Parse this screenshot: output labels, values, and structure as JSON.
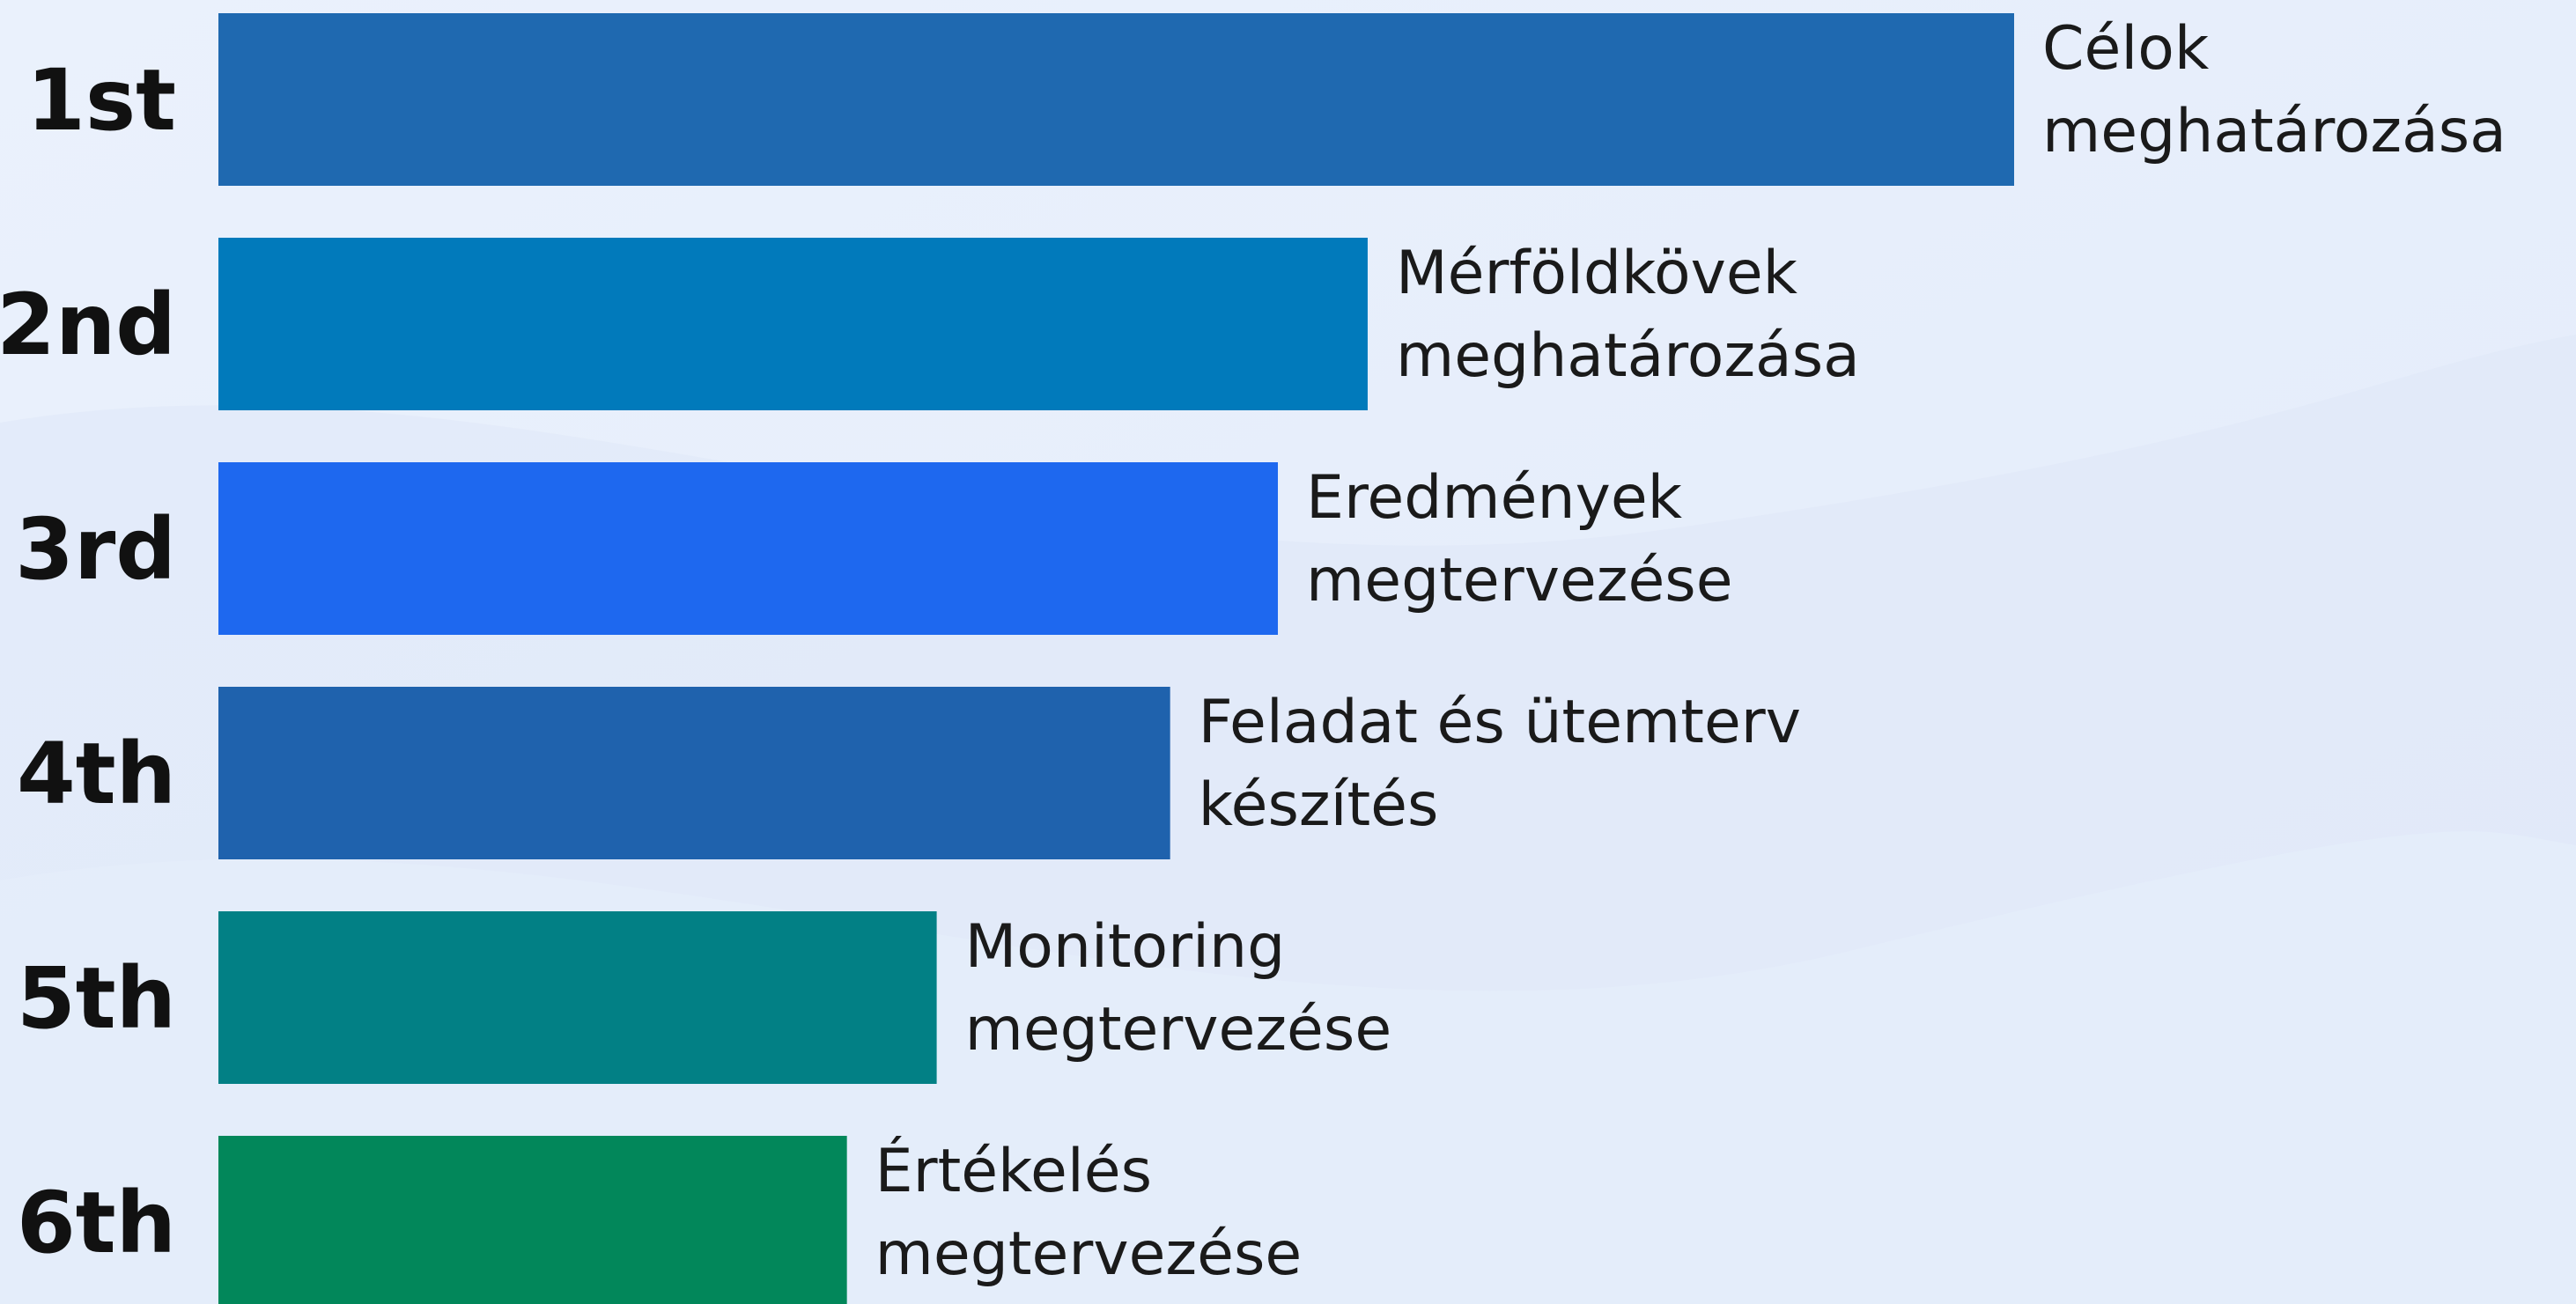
{
  "chart_data": {
    "type": "hbar",
    "categories": [
      "1st",
      "2nd",
      "3rd",
      "4th",
      "5th",
      "6th"
    ],
    "values": [
      100,
      64,
      59,
      53,
      40,
      35
    ],
    "xlim": [
      0,
      100
    ],
    "colors": [
      "#1f69b0",
      "#017abb",
      "#1e68ef",
      "#1f62ad",
      "#028085",
      "#02875a"
    ],
    "bar_labels": [
      [
        "Célok",
        "meghatározása"
      ],
      [
        "Mérföldkövek",
        "meghatározása"
      ],
      [
        "Eredmények",
        "megtervezése"
      ],
      [
        "Feladat és ütemterv",
        "készítés"
      ],
      [
        "Monitoring",
        "megtervezése"
      ],
      [
        "Értékelés",
        "megtervezése"
      ]
    ]
  }
}
